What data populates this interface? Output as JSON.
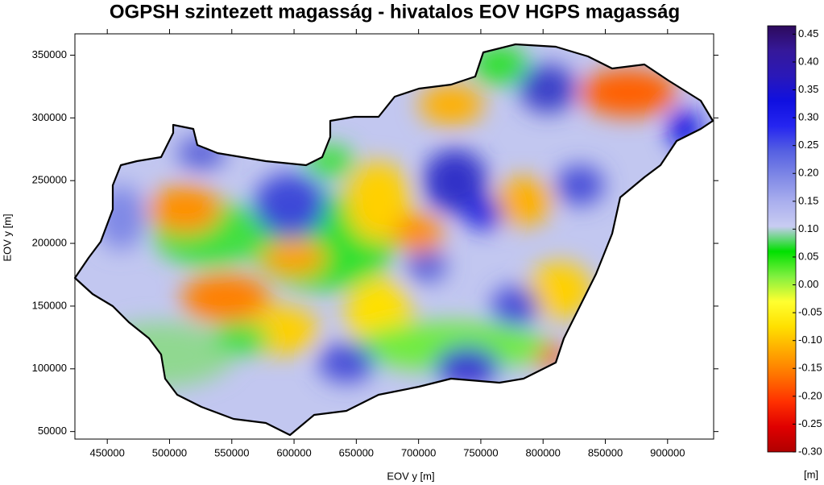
{
  "chart_data": {
    "type": "contour",
    "title": "OGPSH szintezett magasság - hivatalos EOV HGPS magasság",
    "x_label": "EOV y [m]",
    "y_label": "EOV y [m]",
    "xlim": [
      424000,
      937000
    ],
    "ylim": [
      44000,
      367000
    ],
    "xticks": [
      450000,
      500000,
      550000,
      600000,
      650000,
      700000,
      750000,
      800000,
      850000,
      900000
    ],
    "yticks": [
      50000,
      100000,
      150000,
      200000,
      250000,
      300000,
      350000
    ],
    "colorbar": {
      "label": "[m]",
      "lim": [
        -0.3,
        0.465
      ],
      "ticks": [
        0.45,
        {
          "value": 0.4,
          "label": "0.40"
        },
        0.35,
        {
          "value": 0.3,
          "label": "0.30"
        },
        0.25,
        {
          "value": 0.2,
          "label": "0.20"
        },
        0.15,
        {
          "value": 0.1,
          "label": "0.10"
        },
        0.05,
        {
          "value": 0,
          "label": "0.00"
        },
        -0.05,
        {
          "value": -0.1,
          "label": "-0.10"
        },
        -0.15,
        {
          "value": -0.2,
          "label": "-0.20"
        },
        -0.25,
        {
          "value": -0.3,
          "label": "-0.30"
        }
      ],
      "colormap": [
        "#b00000",
        "#e00000",
        "#ff3000",
        "#ff7000",
        "#ffa800",
        "#ffe000",
        "#ffff30",
        "#80f040",
        "#00e000",
        "#c8ccf2",
        "#a9aeee",
        "#7f88e6",
        "#5560e2",
        "#2525f0",
        "#1010e0",
        "#2a18b8",
        "#35189a",
        "#2d0a5c"
      ]
    }
  }
}
